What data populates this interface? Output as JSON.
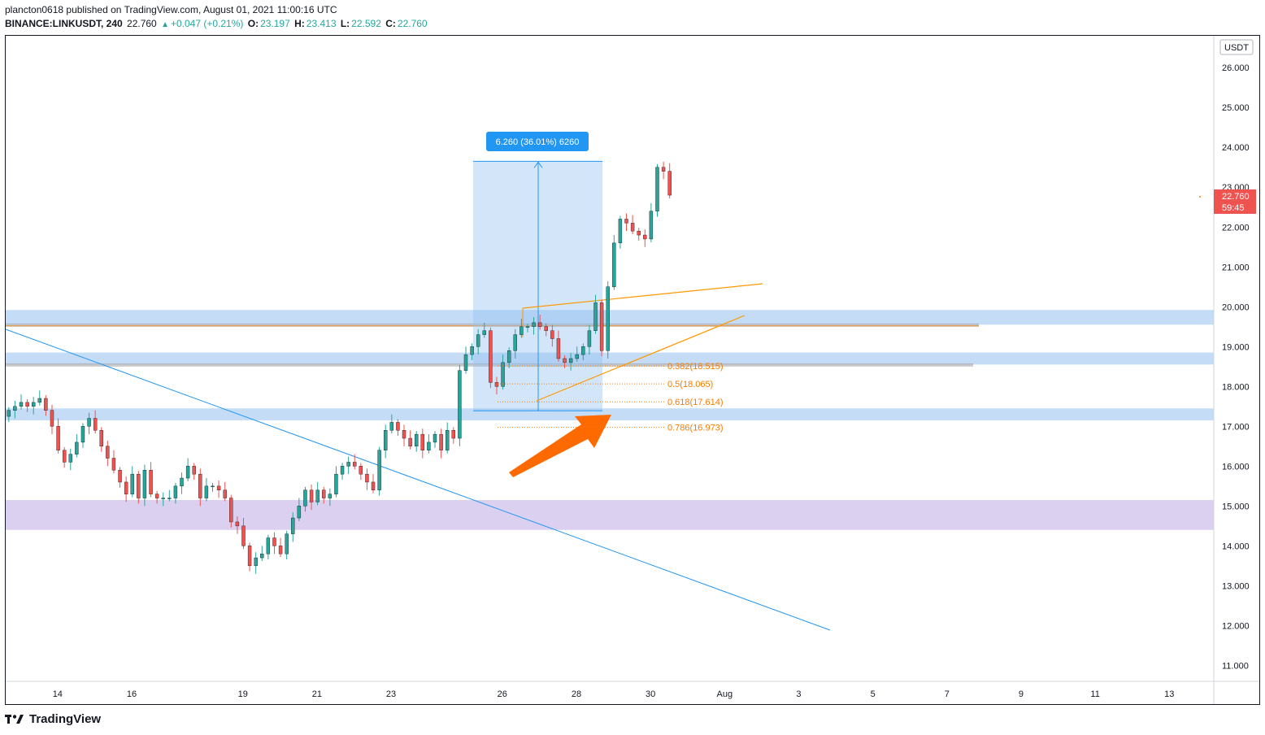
{
  "header": {
    "publisher_line": "plancton0618 published on TradingView.com, August 01, 2021 11:00:16 UTC",
    "symbol": "BINANCE:LINKUSDT, 240",
    "last": "22.760",
    "change": "+0.047 (+0.21%)",
    "o_label": "O:",
    "o_value": "23.197",
    "h_label": "H:",
    "h_value": "23.413",
    "l_label": "L:",
    "l_value": "22.592",
    "c_label": "C:",
    "c_value": "22.760"
  },
  "footer": {
    "brand": "TradingView"
  },
  "colors": {
    "up": "#26a69a",
    "down": "#ef5350",
    "orange": "#f57c00",
    "blue_zone": "#bbd6f6",
    "purple_zone": "#d5c8ec",
    "trend": "#2196f3"
  },
  "chart_data": {
    "type": "candlestick",
    "currency": "USDT",
    "y_ticks": [
      26,
      25,
      24,
      23,
      22,
      21,
      20,
      19,
      18,
      17,
      16,
      15,
      14,
      13,
      12,
      11
    ],
    "ylim": [
      10.6,
      26.8
    ],
    "x_day_range": [
      12.6,
      45.2
    ],
    "x_ticks": [
      {
        "day": 14,
        "label": "14"
      },
      {
        "day": 16,
        "label": "16"
      },
      {
        "day": 19,
        "label": "19"
      },
      {
        "day": 21,
        "label": "21"
      },
      {
        "day": 23,
        "label": "23"
      },
      {
        "day": 26,
        "label": "26"
      },
      {
        "day": 28,
        "label": "28"
      },
      {
        "day": 30,
        "label": "30"
      },
      {
        "day": 32,
        "label": "Aug"
      },
      {
        "day": 34,
        "label": "3"
      },
      {
        "day": 36,
        "label": "5"
      },
      {
        "day": 38,
        "label": "7"
      },
      {
        "day": 40,
        "label": "9"
      },
      {
        "day": 42,
        "label": "11"
      },
      {
        "day": 44,
        "label": "13"
      }
    ],
    "last_price_label": "22.760",
    "countdown_label": "59:45",
    "closes": [
      17.4,
      17.5,
      17.6,
      17.5,
      17.6,
      17.7,
      17.4,
      17.0,
      16.4,
      16.1,
      16.3,
      16.6,
      17.0,
      17.2,
      16.9,
      16.5,
      16.2,
      15.9,
      15.6,
      15.3,
      15.8,
      15.2,
      15.9,
      15.3,
      15.2,
      15.2,
      15.2,
      15.5,
      15.7,
      16.0,
      15.8,
      15.2,
      15.5,
      15.5,
      15.4,
      15.2,
      14.6,
      14.5,
      14.0,
      13.5,
      13.7,
      13.8,
      14.2,
      14.0,
      13.8,
      14.3,
      14.7,
      15.0,
      15.4,
      15.1,
      15.4,
      15.2,
      15.3,
      15.8,
      16.0,
      16.1,
      16.0,
      15.8,
      15.6,
      15.4,
      16.4,
      16.9,
      17.1,
      16.9,
      16.7,
      16.5,
      16.8,
      16.4,
      16.6,
      16.8,
      16.4,
      16.9,
      16.7,
      18.4,
      18.8,
      19.0,
      19.3,
      19.4,
      18.1,
      18.0,
      18.6,
      18.9,
      19.3,
      19.5,
      19.5,
      19.6,
      19.5,
      19.4,
      19.2,
      18.7,
      18.6,
      18.7,
      18.8,
      19.0,
      19.4,
      20.1,
      18.9,
      20.5,
      21.6,
      22.2,
      22.1,
      21.9,
      21.8,
      21.7,
      22.4,
      23.5,
      23.4,
      22.8
    ],
    "fib_levels": [
      {
        "ratio": "0.382",
        "price": 18.515,
        "label": "0.382(18.515)"
      },
      {
        "ratio": "0.5",
        "price": 18.065,
        "label": "0.5(18.065)"
      },
      {
        "ratio": "0.618",
        "price": 17.614,
        "label": "0.618(17.614)"
      },
      {
        "ratio": "0.786",
        "price": 16.973,
        "label": "0.786(16.973)"
      }
    ],
    "measure_label": "6.260 (36.01%) 6260",
    "zones": [
      {
        "name": "resistance-zone",
        "from": 19.55,
        "to": 19.92
      },
      {
        "name": "support-zone-upper",
        "from": 18.55,
        "to": 18.85
      },
      {
        "name": "support-zone-lower",
        "from": 17.15,
        "to": 17.45
      },
      {
        "name": "demand-zone",
        "from": 14.4,
        "to": 15.15
      }
    ]
  }
}
